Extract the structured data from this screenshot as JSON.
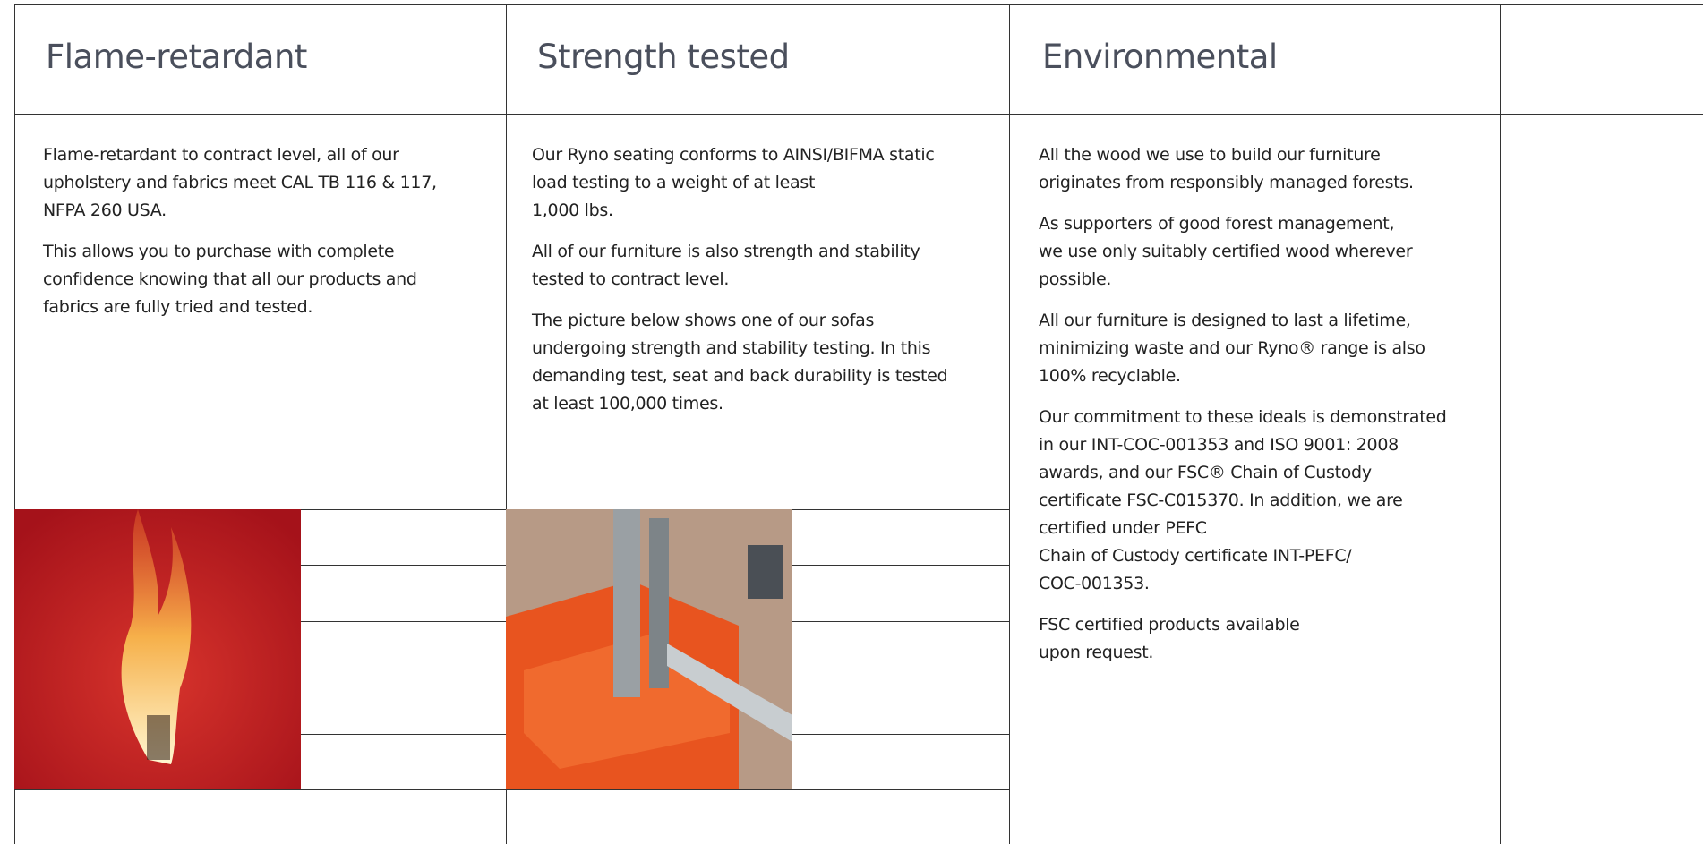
{
  "columns": [
    {
      "title": "Flame-retardant",
      "paragraphs": [
        [
          "Flame-retardant to contract level, all of our",
          "upholstery and fabrics meet CAL TB 116 & 117,",
          "NFPA 260 USA."
        ],
        [
          "This allows you to purchase with complete",
          "confidence knowing that all our products and",
          "fabrics are fully tried and tested."
        ]
      ]
    },
    {
      "title": "Strength tested",
      "paragraphs": [
        [
          "Our Ryno seating conforms to AINSI/BIFMA static",
          "load testing to a weight of at least",
          "1,000 lbs."
        ],
        [
          "All of our furniture is also strength and stability",
          "tested to contract level."
        ],
        [
          "The picture below shows one of our sofas",
          "undergoing strength and stability testing. In this",
          "demanding test, seat and back durability is tested",
          "at least 100,000 times."
        ]
      ]
    },
    {
      "title": "Environmental",
      "paragraphs": [
        [
          "All the wood we use to build our furniture",
          "originates from responsibly managed forests."
        ],
        [
          "As supporters of good forest management,",
          "we use only suitably certified wood wherever",
          "possible."
        ],
        [
          "All our furniture is designed to last a lifetime,",
          "minimizing waste and our Ryno® range is also",
          "100% recyclable."
        ],
        [
          "Our commitment to these ideals is demonstrated",
          "in our INT-COC-001353 and ISO 9001: 2008",
          "awards, and our FSC® Chain of Custody",
          "certificate FSC-C015370. In addition, we are",
          "certified under PEFC",
          "Chain of Custody certificate INT-PEFC/",
          "COC-001353."
        ],
        [
          "FSC certified products available",
          "upon request."
        ]
      ]
    }
  ]
}
